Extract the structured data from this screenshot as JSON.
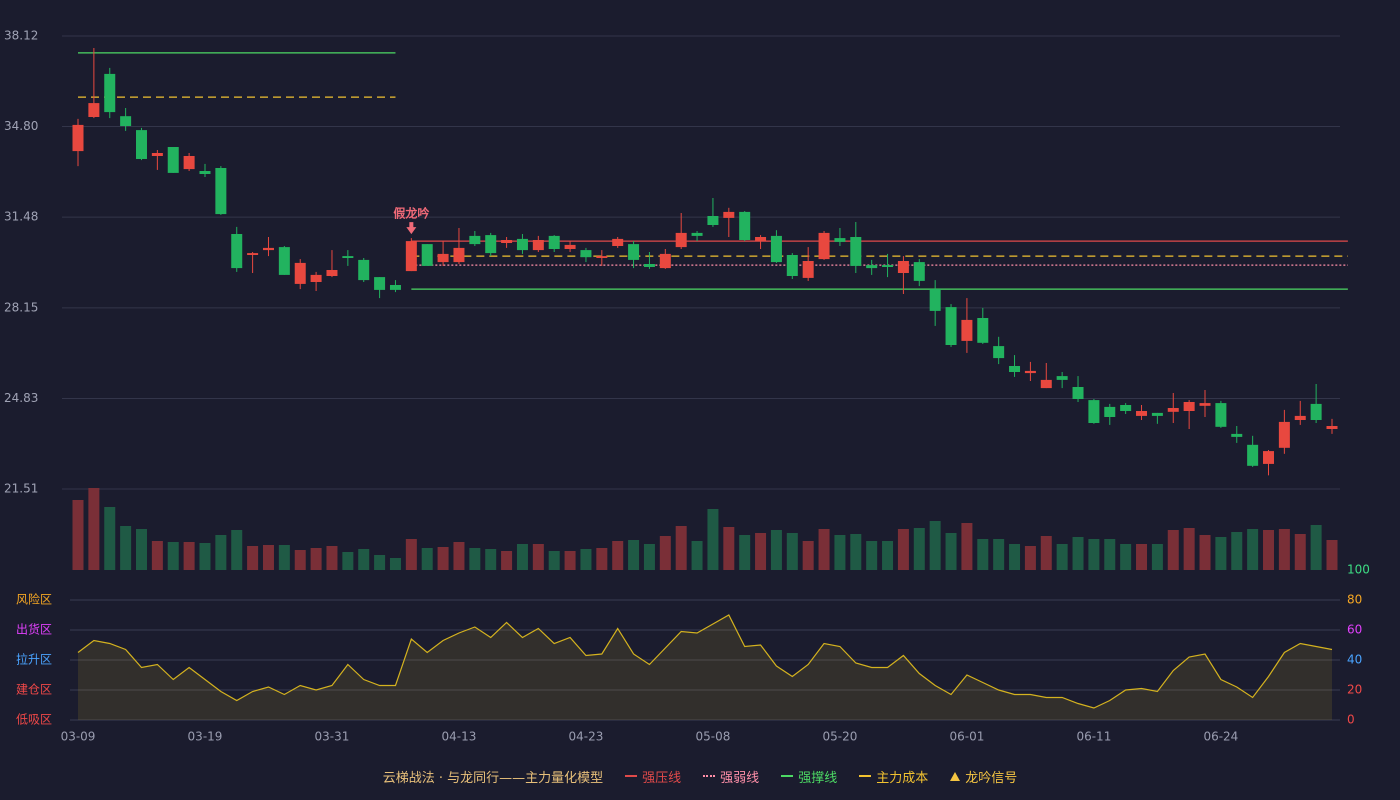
{
  "chart_data": {
    "type": "candlestick",
    "categories": [
      "03-09",
      null,
      null,
      null,
      null,
      null,
      null,
      null,
      "03-19",
      null,
      null,
      null,
      null,
      null,
      null,
      null,
      "03-31",
      null,
      null,
      null,
      null,
      null,
      null,
      null,
      "04-13",
      null,
      null,
      null,
      null,
      null,
      null,
      null,
      "04-23",
      null,
      null,
      null,
      null,
      null,
      null,
      null,
      "05-08",
      null,
      null,
      null,
      null,
      null,
      null,
      null,
      "05-20",
      null,
      null,
      null,
      null,
      null,
      null,
      null,
      "06-01",
      null,
      null,
      null,
      null,
      null,
      null,
      null,
      "06-11",
      null,
      null,
      null,
      null,
      null,
      null,
      null,
      "06-24",
      null,
      null,
      null,
      null,
      null,
      null,
      null
    ],
    "open": [
      33.9,
      35.15,
      36.73,
      35.18,
      34.67,
      33.72,
      34.05,
      33.24,
      33.17,
      33.28,
      30.86,
      30.09,
      30.27,
      30.38,
      29.03,
      29.1,
      29.32,
      30.05,
      29.91,
      29.28,
      28.99,
      29.5,
      30.49,
      29.83,
      29.83,
      30.79,
      30.82,
      30.53,
      30.68,
      30.27,
      30.79,
      30.31,
      30.27,
      29.98,
      30.42,
      30.49,
      29.76,
      29.61,
      30.38,
      30.9,
      31.52,
      31.45,
      31.67,
      30.6,
      30.79,
      30.09,
      29.25,
      29.94,
      30.71,
      30.75,
      29.72,
      29.72,
      29.43,
      29.83,
      28.84,
      28.18,
      26.94,
      27.78,
      26.75,
      26.02,
      25.76,
      25.21,
      25.65,
      25.25,
      24.77,
      24.52,
      24.59,
      24.19,
      24.3,
      24.34,
      24.37,
      24.56,
      24.66,
      23.53,
      23.13,
      22.43,
      23.02,
      24.04,
      24.63,
      23.71
    ],
    "high": [
      35.08,
      37.68,
      36.95,
      35.48,
      34.75,
      33.94,
      34.05,
      33.83,
      33.43,
      33.35,
      31.12,
      30.2,
      30.75,
      30.42,
      29.94,
      29.47,
      30.27,
      30.27,
      29.98,
      29.28,
      29.17,
      30.71,
      30.49,
      30.6,
      31.08,
      30.97,
      30.9,
      30.75,
      30.86,
      30.79,
      30.82,
      30.6,
      30.35,
      30.27,
      30.75,
      30.6,
      30.2,
      30.31,
      31.63,
      30.97,
      32.18,
      31.82,
      31.7,
      30.82,
      31.0,
      30.16,
      30.38,
      30.97,
      31.08,
      31.3,
      29.91,
      30.13,
      30.05,
      29.94,
      29.17,
      28.29,
      28.51,
      28.15,
      27.09,
      26.42,
      26.17,
      26.13,
      25.8,
      25.65,
      24.81,
      24.63,
      24.66,
      24.59,
      24.3,
      25.03,
      24.77,
      25.14,
      24.74,
      23.82,
      23.46,
      22.94,
      24.41,
      24.74,
      25.36,
      24.08
    ],
    "low": [
      33.35,
      35.11,
      35.11,
      34.64,
      33.57,
      33.21,
      33.1,
      33.17,
      32.95,
      31.56,
      29.47,
      29.43,
      30.05,
      29.36,
      28.84,
      28.77,
      29.28,
      29.69,
      29.1,
      28.51,
      28.73,
      29.5,
      29.69,
      29.69,
      29.76,
      30.42,
      30.05,
      30.35,
      30.13,
      30.2,
      30.2,
      30.2,
      29.83,
      29.69,
      30.35,
      29.61,
      29.58,
      29.58,
      30.31,
      30.6,
      31.12,
      30.75,
      30.6,
      30.31,
      29.8,
      29.21,
      29.14,
      29.91,
      30.42,
      29.43,
      29.36,
      29.28,
      28.66,
      28.95,
      27.49,
      26.72,
      26.5,
      26.83,
      26.09,
      25.62,
      25.47,
      25.21,
      25.21,
      24.7,
      23.9,
      23.86,
      24.26,
      24.04,
      23.9,
      23.93,
      23.71,
      24.15,
      23.75,
      23.2,
      22.32,
      22.01,
      22.8,
      23.86,
      23.93,
      23.53
    ],
    "close": [
      34.86,
      35.66,
      35.33,
      34.82,
      33.61,
      33.83,
      33.1,
      33.72,
      33.06,
      31.59,
      29.61,
      30.16,
      30.35,
      29.36,
      29.8,
      29.36,
      29.54,
      29.98,
      29.17,
      28.81,
      28.81,
      30.6,
      29.69,
      30.13,
      30.35,
      30.49,
      30.16,
      30.64,
      30.27,
      30.64,
      30.31,
      30.46,
      30.01,
      30.05,
      30.68,
      29.91,
      29.65,
      30.13,
      30.9,
      30.79,
      31.19,
      31.67,
      30.64,
      30.75,
      29.83,
      29.32,
      29.87,
      30.9,
      30.57,
      29.69,
      29.61,
      29.65,
      29.87,
      29.14,
      28.04,
      26.79,
      27.71,
      26.87,
      26.31,
      25.8,
      25.84,
      25.51,
      25.51,
      24.81,
      23.93,
      24.15,
      24.37,
      24.37,
      24.19,
      24.48,
      24.7,
      24.66,
      23.79,
      23.42,
      22.36,
      22.9,
      23.97,
      24.19,
      24.04,
      23.82
    ],
    "volume": [
      70,
      82,
      63,
      44,
      41,
      29,
      28,
      28,
      27,
      35,
      40,
      24,
      25,
      25,
      20,
      22,
      24,
      18,
      21,
      15,
      12,
      31,
      22,
      23,
      28,
      22,
      21,
      19,
      26,
      26,
      19,
      19,
      21,
      22,
      29,
      30,
      26,
      34,
      44,
      29,
      61,
      43,
      35,
      37,
      40,
      37,
      29,
      41,
      35,
      36,
      29,
      29,
      41,
      42,
      49,
      37,
      47,
      31,
      31,
      26,
      24,
      34,
      26,
      33,
      31,
      31,
      26,
      26,
      26,
      40,
      42,
      35,
      33,
      38,
      41,
      40,
      41,
      36,
      45,
      30
    ],
    "up_color": "#e8483f",
    "down_color": "#22b35f",
    "volume_up_color": "#7a2f37",
    "volume_down_color": "#1f5a45",
    "ylim": [
      21.51,
      38.12
    ],
    "yticks": [
      38.12,
      {
        "value": 34.8,
        "label": "34.80"
      },
      31.48,
      28.15,
      24.83,
      21.51
    ],
    "grid": true,
    "levels": [
      {
        "name": "强压线",
        "color": "#e04a4a",
        "style": "solid",
        "values": [
          null,
          null,
          null,
          null,
          null,
          null,
          null,
          null,
          null,
          null,
          null,
          null,
          null,
          null,
          null,
          null,
          null,
          null,
          null,
          null,
          null,
          30.6,
          30.6,
          30.6,
          30.6,
          30.6,
          30.6,
          30.6,
          30.6,
          30.6,
          30.6,
          30.6,
          30.6,
          30.6,
          30.6,
          30.6,
          30.6,
          30.6,
          30.6,
          30.6,
          30.6,
          30.6,
          30.6,
          30.6,
          30.6,
          30.6,
          30.6,
          30.6,
          30.6,
          30.6,
          30.6,
          30.6,
          30.6,
          30.6,
          30.6,
          30.6,
          30.6,
          30.6,
          30.6,
          30.6,
          30.6,
          30.6,
          30.6,
          30.6,
          30.6,
          30.6,
          30.6,
          30.6,
          30.6,
          30.6,
          30.6,
          30.6,
          30.6,
          30.6,
          30.6,
          30.6,
          30.6,
          30.6,
          30.6,
          30.6,
          30.6
        ]
      },
      {
        "name": "强弱线",
        "color": "#ff8fa8",
        "style": "dotted",
        "values": [
          null,
          null,
          null,
          null,
          null,
          null,
          null,
          null,
          null,
          null,
          null,
          null,
          null,
          null,
          null,
          null,
          null,
          null,
          null,
          null,
          null,
          29.72,
          29.72,
          29.72,
          29.72,
          29.72,
          29.72,
          29.72,
          29.72,
          29.72,
          29.72,
          29.72,
          29.72,
          29.72,
          29.72,
          29.72,
          29.72,
          29.72,
          29.72,
          29.72,
          29.72,
          29.72,
          29.72,
          29.72,
          29.72,
          29.72,
          29.72,
          29.72,
          29.72,
          29.72,
          29.72,
          29.72,
          29.72,
          29.72,
          29.72,
          29.72,
          29.72,
          29.72,
          29.72,
          29.72,
          29.72,
          29.72,
          29.72,
          29.72,
          29.72,
          29.72,
          29.72,
          29.72,
          29.72,
          29.72,
          29.72,
          29.72,
          29.72,
          29.72,
          29.72,
          29.72,
          29.72,
          29.72,
          29.72,
          29.72,
          29.72
        ]
      },
      {
        "name": "强撑线",
        "color": "#4cd964",
        "style": "solid",
        "values": [
          37.5,
          37.5,
          37.5,
          37.5,
          37.5,
          37.5,
          37.5,
          37.5,
          37.5,
          37.5,
          37.5,
          37.5,
          37.5,
          37.5,
          37.5,
          37.5,
          37.5,
          37.5,
          37.5,
          37.5,
          37.5,
          28.84,
          28.84,
          28.84,
          28.84,
          28.84,
          28.84,
          28.84,
          28.84,
          28.84,
          28.84,
          28.84,
          28.84,
          28.84,
          28.84,
          28.84,
          28.84,
          28.84,
          28.84,
          28.84,
          28.84,
          28.84,
          28.84,
          28.84,
          28.84,
          28.84,
          28.84,
          28.84,
          28.84,
          28.84,
          28.84,
          28.84,
          28.84,
          28.84,
          28.84,
          28.84,
          28.84,
          28.84,
          28.84,
          28.84,
          28.84,
          28.84,
          28.84,
          28.84,
          28.84,
          28.84,
          28.84,
          28.84,
          28.84,
          28.84,
          28.84,
          28.84,
          28.84,
          28.84,
          28.84,
          28.84,
          28.84,
          28.84,
          28.84,
          28.84,
          28.84
        ]
      },
      {
        "name": "主力成本",
        "color": "#f2c230",
        "style": "dashed",
        "values": [
          35.88,
          35.88,
          35.88,
          35.88,
          35.88,
          35.88,
          35.88,
          35.88,
          35.88,
          35.88,
          35.88,
          35.88,
          35.88,
          35.88,
          35.88,
          35.88,
          35.88,
          35.88,
          35.88,
          35.88,
          35.88,
          30.05,
          30.05,
          30.05,
          30.05,
          30.05,
          30.05,
          30.05,
          30.05,
          30.05,
          30.05,
          30.05,
          30.05,
          30.05,
          30.05,
          30.05,
          30.05,
          30.05,
          30.05,
          30.05,
          30.05,
          30.05,
          30.05,
          30.05,
          30.05,
          30.05,
          30.05,
          30.05,
          30.05,
          30.05,
          30.05,
          30.05,
          30.05,
          30.05,
          30.05,
          30.05,
          30.05,
          30.05,
          30.05,
          30.05,
          30.05,
          30.05,
          30.05,
          30.05,
          30.05,
          30.05,
          30.05,
          30.05,
          30.05,
          30.05,
          30.05,
          30.05,
          30.05,
          30.05,
          30.05,
          30.05,
          30.05,
          30.05,
          30.05,
          30.05,
          30.05
        ]
      }
    ],
    "signals": {
      "name": "龙吟信号",
      "color": "#f5c542",
      "marker_color": "#f06a78",
      "labels": [
        null,
        null,
        null,
        null,
        null,
        null,
        null,
        null,
        null,
        null,
        null,
        null,
        null,
        null,
        null,
        null,
        null,
        null,
        null,
        null,
        null,
        "假龙吟",
        null,
        null,
        null,
        null,
        null,
        null,
        null,
        null,
        null,
        null,
        null,
        null,
        null,
        null,
        null,
        null,
        null,
        null,
        null,
        null,
        null,
        null,
        null,
        null,
        null,
        null,
        null,
        null,
        null,
        null,
        null,
        null,
        null,
        null,
        null,
        null,
        null,
        null,
        null,
        null,
        null,
        null,
        null,
        null,
        null,
        null,
        null,
        null,
        null,
        null,
        null,
        null,
        null,
        null,
        null,
        null,
        null,
        null,
        null,
        null
      ]
    },
    "legend_title": "云梯战法 · 与龙同行——主力量化模型",
    "legend_title_color": "#e8c07a",
    "indicator": {
      "color": "#d4b21f",
      "values": [
        45,
        53,
        51,
        47,
        35,
        37,
        27,
        35,
        27,
        19,
        13,
        19,
        22,
        17,
        23,
        20,
        23,
        37,
        27,
        23,
        23,
        54,
        45,
        53,
        58,
        62,
        55,
        65,
        55,
        61,
        51,
        55,
        43,
        44,
        61,
        44,
        37,
        48,
        59,
        58,
        64,
        70,
        49,
        50,
        36,
        29,
        37,
        51,
        49,
        38,
        35,
        35,
        43,
        31,
        23,
        17,
        30,
        25,
        20,
        17,
        17,
        15,
        15,
        11,
        8,
        13,
        20,
        21,
        19,
        33,
        42,
        44,
        27,
        22,
        15,
        29,
        45,
        51,
        49,
        47
      ],
      "ylim": [
        0,
        100
      ],
      "yticks": [
        0,
        20,
        40,
        60,
        80,
        100
      ],
      "ytick_colors": [
        "#f04848",
        "#f04848",
        "#4aa3ff",
        "#e040fb",
        "#f5a623",
        "#3ddc84"
      ],
      "zones": [
        {
          "label": "风险区",
          "value": 80,
          "color": "#f5a623"
        },
        {
          "label": "出货区",
          "value": 60,
          "color": "#e040fb"
        },
        {
          "label": "拉升区",
          "value": 40,
          "color": "#4aa3ff"
        },
        {
          "label": "建仓区",
          "value": 20,
          "color": "#f04848"
        },
        {
          "label": "低吸区",
          "value": 0,
          "color": "#f04848"
        }
      ]
    }
  }
}
